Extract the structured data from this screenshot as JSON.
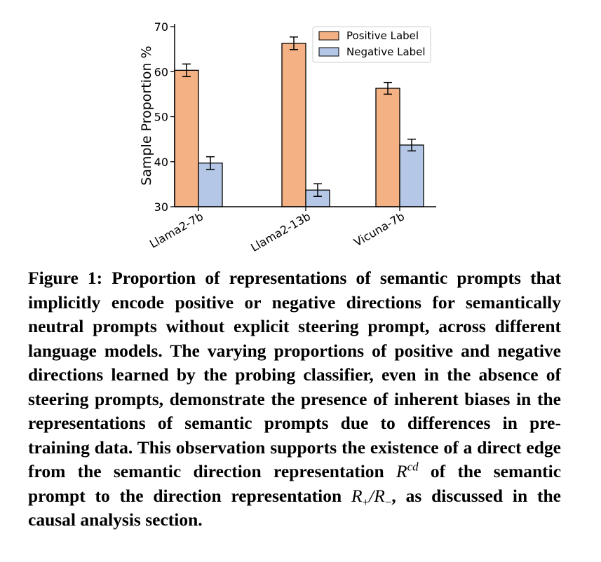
{
  "chart_data": {
    "type": "bar",
    "categories": [
      "Llama2-7b",
      "Llama2-13b",
      "Vicuna-7b"
    ],
    "series": [
      {
        "name": "Positive Label",
        "values": [
          60.3,
          66.3,
          56.3
        ],
        "errors": [
          1.4,
          1.4,
          1.3
        ],
        "color": "#f4b183"
      },
      {
        "name": "Negative Label",
        "values": [
          39.7,
          33.7,
          43.7
        ],
        "errors": [
          1.4,
          1.4,
          1.3
        ],
        "color": "#b4c7e7"
      }
    ],
    "ylabel": "Sample Proportion %",
    "ylim": [
      30,
      70
    ],
    "yticks": [
      "30",
      "40",
      "50",
      "60",
      "70"
    ],
    "legend": "top-right",
    "grid": false
  },
  "caption": {
    "lead": "Figure 1: Proportion of representations of semantic prompts that implicitly encode positive or negative directions for semantically neutral prompts without explicit steering prompt, across different language models. The varying proportions of positive and negative directions learned by the probing classifier, even in the absence of steering prompts, demonstrate the presence of inherent biases in the representations of semantic prompts due to differences in pre-training data. This observation supports the existence of a direct edge from the semantic direction representation",
    "sym1": "R",
    "sym1_sup": "cd",
    "middle": "of the semantic prompt to the direction representation",
    "sym2a": "R",
    "sym2a_sub": "+",
    "slash": "/",
    "sym2b": "R",
    "sym2b_sub": "−",
    "tail": ", as discussed in the causal analysis section."
  }
}
